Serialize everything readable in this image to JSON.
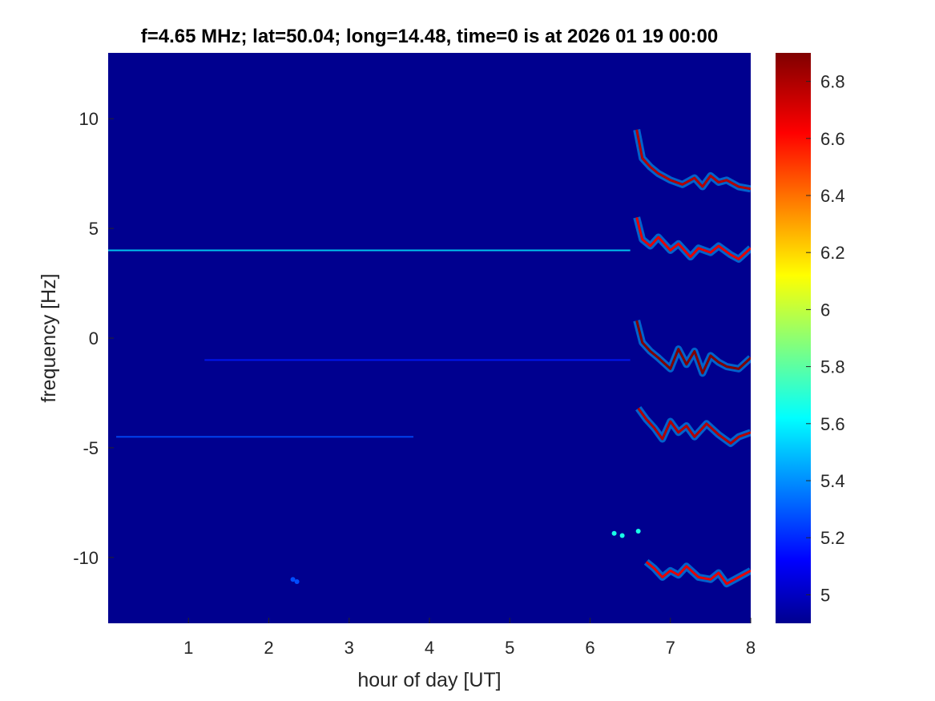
{
  "figure": {
    "title": "f=4.65 MHz;  lat=50.04; long=14.48, time=0 is at 2026 01 19 00:00"
  },
  "chart_data": {
    "type": "heatmap",
    "title": "f=4.65 MHz;  lat=50.04; long=14.48, time=0 is at 2026 01 19 00:00",
    "xlabel": "hour of day [UT]",
    "ylabel": "frequency [Hz]",
    "xlim": [
      0,
      8
    ],
    "ylim": [
      -13,
      13
    ],
    "x_ticks": [
      1,
      2,
      3,
      4,
      5,
      6,
      7,
      8
    ],
    "x_tick_labels": [
      "1",
      "2",
      "3",
      "4",
      "5",
      "6",
      "7",
      "8"
    ],
    "y_ticks": [
      10,
      5,
      0,
      -5,
      -10
    ],
    "y_tick_labels": [
      "10",
      "5",
      "0",
      "-5",
      "-10"
    ],
    "colorbar": {
      "colormap": "jet",
      "clim": [
        4.9,
        6.9
      ],
      "ticks": [
        6.8,
        6.6,
        6.4,
        6.2,
        6.0,
        5.8,
        5.6,
        5.4,
        5.2,
        5.0
      ],
      "tick_labels": [
        "6.8",
        "6.6",
        "6.4",
        "6.2",
        "6",
        "5.8",
        "5.6",
        "5.4",
        "5.2",
        "5"
      ]
    },
    "background_value": 4.9,
    "features": [
      {
        "kind": "line",
        "x": [
          0,
          6.5
        ],
        "y": [
          4.0,
          4.0
        ],
        "value": 5.6
      },
      {
        "kind": "line",
        "x": [
          1.2,
          6.5
        ],
        "y": [
          -1.0,
          -1.0
        ],
        "value": 5.2
      },
      {
        "kind": "line",
        "x": [
          0.1,
          3.8
        ],
        "y": [
          -4.5,
          -4.5
        ],
        "value": 5.3
      },
      {
        "kind": "trace",
        "x": [
          6.58,
          6.65,
          6.75,
          6.85,
          7.0,
          7.15,
          7.3,
          7.4,
          7.5,
          7.6,
          7.7,
          7.85,
          8.0
        ],
        "y": [
          9.5,
          8.2,
          7.8,
          7.5,
          7.2,
          7.0,
          7.3,
          6.9,
          7.4,
          7.1,
          7.2,
          6.9,
          6.8
        ],
        "value": 6.8
      },
      {
        "kind": "trace",
        "x": [
          6.58,
          6.65,
          6.75,
          6.85,
          7.0,
          7.1,
          7.25,
          7.35,
          7.5,
          7.6,
          7.75,
          7.85,
          8.0
        ],
        "y": [
          5.5,
          4.5,
          4.2,
          4.6,
          4.0,
          4.3,
          3.7,
          4.1,
          3.9,
          4.2,
          3.8,
          3.6,
          4.1
        ],
        "value": 6.7
      },
      {
        "kind": "trace",
        "x": [
          6.58,
          6.65,
          6.75,
          6.85,
          7.0,
          7.1,
          7.2,
          7.3,
          7.4,
          7.5,
          7.6,
          7.7,
          7.85,
          8.0
        ],
        "y": [
          0.8,
          -0.2,
          -0.6,
          -0.9,
          -1.4,
          -0.5,
          -1.2,
          -0.6,
          -1.6,
          -0.8,
          -1.1,
          -1.3,
          -1.4,
          -0.9
        ],
        "value": 6.9
      },
      {
        "kind": "trace",
        "x": [
          6.6,
          6.7,
          6.8,
          6.9,
          7.0,
          7.1,
          7.2,
          7.3,
          7.45,
          7.6,
          7.75,
          7.85,
          8.0
        ],
        "y": [
          -3.2,
          -3.7,
          -4.1,
          -4.6,
          -3.8,
          -4.3,
          -4.0,
          -4.5,
          -3.9,
          -4.4,
          -4.8,
          -4.5,
          -4.3
        ],
        "value": 6.8
      },
      {
        "kind": "trace",
        "x": [
          6.7,
          6.8,
          6.9,
          7.0,
          7.1,
          7.2,
          7.35,
          7.5,
          7.6,
          7.7,
          7.85,
          8.0
        ],
        "y": [
          -10.2,
          -10.5,
          -10.9,
          -10.6,
          -10.8,
          -10.4,
          -10.9,
          -11.0,
          -10.7,
          -11.2,
          -10.9,
          -10.6
        ],
        "value": 6.7
      },
      {
        "kind": "blob",
        "x": [
          6.3,
          6.4,
          6.6
        ],
        "y": [
          -8.9,
          -9.0,
          -8.8
        ],
        "value": 5.7
      },
      {
        "kind": "blob",
        "x": [
          2.3,
          2.35
        ],
        "y": [
          -11.0,
          -11.1
        ],
        "value": 5.3
      }
    ]
  }
}
